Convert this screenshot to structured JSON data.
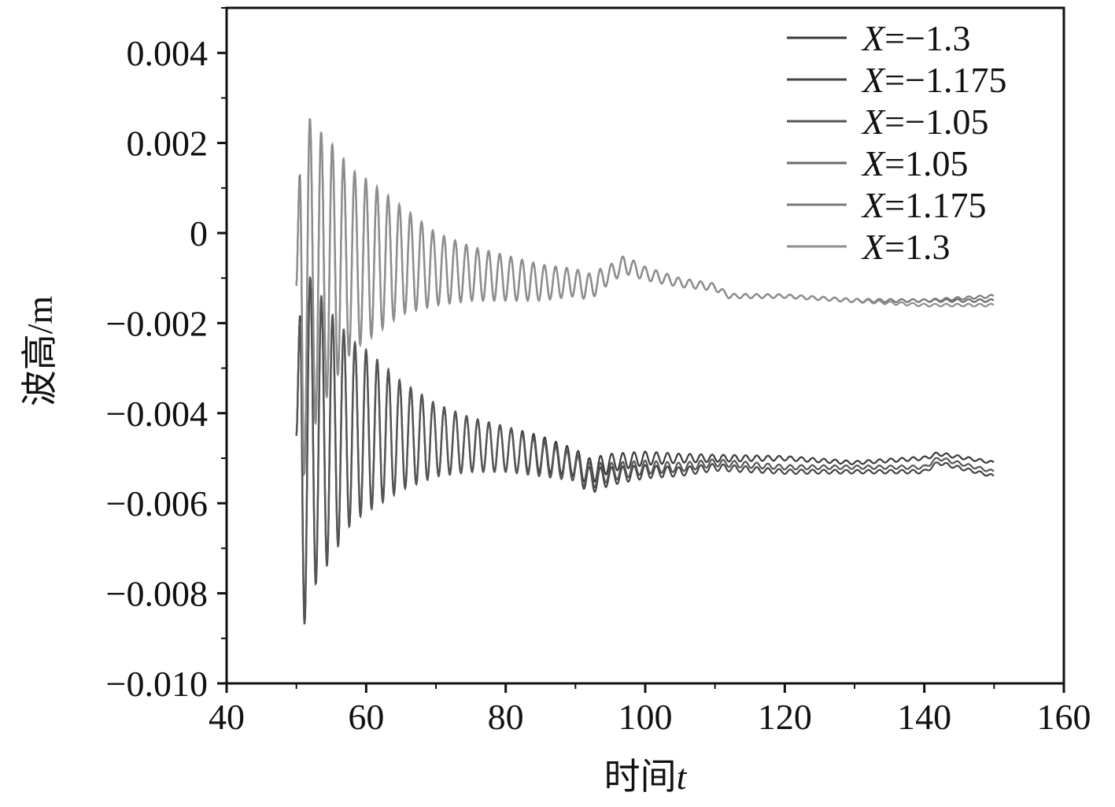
{
  "chart_data": {
    "type": "line",
    "title": "",
    "xlabel": "时间",
    "xlabel_var": "t",
    "ylabel": "波高/m",
    "xlim": [
      40,
      160
    ],
    "ylim": [
      -0.01,
      0.005
    ],
    "x_ticks": [
      40,
      60,
      80,
      100,
      120,
      140,
      160
    ],
    "y_ticks": [
      0.004,
      0.002,
      0,
      -0.002,
      -0.004,
      -0.006,
      -0.008,
      -0.01
    ],
    "y_tick_labels": [
      "0.004",
      "0.002",
      "0",
      "−0.002",
      "−0.004",
      "−0.006",
      "−0.008",
      "−0.010"
    ],
    "grid": false,
    "legend_position": "top-right",
    "legend": [
      {
        "var": "X",
        "value": "=−1.3",
        "color": "#3a3a3a"
      },
      {
        "var": "X",
        "value": "=−1.175",
        "color": "#444444"
      },
      {
        "var": "X",
        "value": "=−1.05",
        "color": "#555555"
      },
      {
        "var": "X",
        "value": "=1.05",
        "color": "#6a6a6a"
      },
      {
        "var": "X",
        "value": "=1.175",
        "color": "#7a7a7a"
      },
      {
        "var": "X",
        "value": "=1.3",
        "color": "#8e8e8e"
      }
    ],
    "series": [
      {
        "name": "X=−1.3",
        "color": "#3a3a3a",
        "x": [
          50,
          50.8,
          52,
          55,
          58,
          60,
          65,
          70,
          75,
          80,
          85,
          90,
          92,
          95,
          100,
          105,
          110,
          120,
          130,
          140,
          142,
          150
        ],
        "amp": [
          0.0002,
          0.0045,
          0.0035,
          0.0027,
          0.002,
          0.0018,
          0.0012,
          0.0008,
          0.0006,
          0.0005,
          0.0004,
          0.0003,
          0.0003,
          0.0002,
          0.00015,
          0.0001,
          8e-05,
          5e-05,
          4e-05,
          4e-05,
          4e-05,
          3e-05
        ],
        "base": [
          -0.0045,
          -0.0045,
          -0.0045,
          -0.0045,
          -0.0044,
          -0.0044,
          -0.0045,
          -0.0046,
          -0.0047,
          -0.0048,
          -0.0049,
          -0.0051,
          -0.0053,
          -0.0051,
          -0.005,
          -0.005,
          -0.005,
          -0.005,
          -0.0051,
          -0.005,
          -0.0049,
          -0.0051
        ]
      },
      {
        "name": "X=−1.175",
        "color": "#444444",
        "x": [
          50,
          50.8,
          52,
          55,
          58,
          60,
          65,
          70,
          75,
          80,
          85,
          90,
          92,
          95,
          100,
          105,
          110,
          120,
          130,
          140,
          142,
          150
        ],
        "amp": [
          0.0002,
          0.0045,
          0.0035,
          0.0027,
          0.002,
          0.0018,
          0.0012,
          0.0008,
          0.0006,
          0.0005,
          0.0004,
          0.0003,
          0.0003,
          0.0002,
          0.00015,
          0.0001,
          8e-05,
          5e-05,
          4e-05,
          4e-05,
          4e-05,
          3e-05
        ],
        "base": [
          -0.0045,
          -0.0045,
          -0.0045,
          -0.0045,
          -0.0044,
          -0.0044,
          -0.0045,
          -0.0046,
          -0.0047,
          -0.0048,
          -0.005,
          -0.0052,
          -0.0055,
          -0.0054,
          -0.0053,
          -0.0053,
          -0.0052,
          -0.0053,
          -0.0053,
          -0.0053,
          -0.0051,
          -0.0054
        ]
      },
      {
        "name": "X=−1.05",
        "color": "#555555",
        "x": [
          50,
          50.8,
          52,
          55,
          58,
          60,
          65,
          70,
          75,
          80,
          85,
          90,
          92,
          95,
          100,
          105,
          110,
          120,
          130,
          140,
          142,
          150
        ],
        "amp": [
          0.0002,
          0.0045,
          0.0035,
          0.0027,
          0.002,
          0.0018,
          0.0012,
          0.0008,
          0.0006,
          0.0005,
          0.0004,
          0.0003,
          0.0003,
          0.0002,
          0.00015,
          0.0001,
          8e-05,
          5e-05,
          4e-05,
          4e-05,
          4e-05,
          3e-05
        ],
        "base": [
          -0.0045,
          -0.0045,
          -0.0045,
          -0.0045,
          -0.0044,
          -0.0044,
          -0.0045,
          -0.0046,
          -0.0047,
          -0.0048,
          -0.005,
          -0.0052,
          -0.0054,
          -0.0053,
          -0.0052,
          -0.0052,
          -0.0051,
          -0.0052,
          -0.0052,
          -0.0052,
          -0.005,
          -0.0053
        ]
      },
      {
        "name": "X=1.05",
        "color": "#6a6a6a",
        "x": [
          50,
          50.8,
          52,
          55,
          58,
          60,
          65,
          70,
          75,
          80,
          85,
          90,
          92,
          95,
          97,
          100,
          105,
          110,
          112,
          120,
          130,
          140,
          150
        ],
        "amp": [
          0.0002,
          0.0045,
          0.0035,
          0.0027,
          0.002,
          0.0018,
          0.0012,
          0.0008,
          0.0006,
          0.0005,
          0.0004,
          0.0003,
          0.0003,
          0.0002,
          0.0002,
          0.00015,
          0.0001,
          8e-05,
          5e-05,
          4e-05,
          4e-05,
          3e-05,
          3e-05
        ],
        "base": [
          -0.0012,
          -0.0012,
          -0.001,
          -0.0007,
          -0.0006,
          -0.0006,
          -0.0006,
          -0.0008,
          -0.0009,
          -0.001,
          -0.0011,
          -0.0011,
          -0.0012,
          -0.0009,
          -0.0007,
          -0.0009,
          -0.0011,
          -0.0012,
          -0.0014,
          -0.0014,
          -0.0015,
          -0.0015,
          -0.0015
        ]
      },
      {
        "name": "X=1.175",
        "color": "#7a7a7a",
        "x": [
          50,
          50.8,
          52,
          55,
          58,
          60,
          65,
          70,
          75,
          80,
          85,
          90,
          92,
          95,
          97,
          100,
          105,
          110,
          112,
          120,
          130,
          140,
          150
        ],
        "amp": [
          0.0002,
          0.0045,
          0.0035,
          0.0027,
          0.002,
          0.0018,
          0.0012,
          0.0008,
          0.0006,
          0.0005,
          0.0004,
          0.0003,
          0.0003,
          0.0002,
          0.0002,
          0.00015,
          0.0001,
          8e-05,
          5e-05,
          4e-05,
          4e-05,
          3e-05,
          3e-05
        ],
        "base": [
          -0.0012,
          -0.0012,
          -0.001,
          -0.0007,
          -0.0006,
          -0.0006,
          -0.0006,
          -0.0008,
          -0.0009,
          -0.001,
          -0.0011,
          -0.0011,
          -0.0012,
          -0.0009,
          -0.0007,
          -0.0009,
          -0.0011,
          -0.0012,
          -0.0014,
          -0.0014,
          -0.0015,
          -0.0015,
          -0.0014
        ]
      },
      {
        "name": "X=1.3",
        "color": "#8e8e8e",
        "x": [
          50,
          50.8,
          52,
          55,
          58,
          60,
          65,
          70,
          75,
          80,
          85,
          90,
          92,
          95,
          97,
          100,
          105,
          110,
          112,
          120,
          130,
          140,
          150
        ],
        "amp": [
          0.0002,
          0.0045,
          0.0035,
          0.0027,
          0.002,
          0.0018,
          0.0012,
          0.0008,
          0.0006,
          0.0005,
          0.0004,
          0.0003,
          0.0003,
          0.0002,
          0.0002,
          0.00015,
          0.0001,
          8e-05,
          5e-05,
          4e-05,
          4e-05,
          3e-05,
          3e-05
        ],
        "base": [
          -0.0012,
          -0.0012,
          -0.001,
          -0.0007,
          -0.0006,
          -0.0006,
          -0.0006,
          -0.0008,
          -0.0009,
          -0.001,
          -0.0011,
          -0.0011,
          -0.0012,
          -0.0009,
          -0.0007,
          -0.0009,
          -0.0011,
          -0.0012,
          -0.0014,
          -0.0014,
          -0.0015,
          -0.0016,
          -0.0016
        ]
      }
    ],
    "oscillation_period": 1.6,
    "x_start": 50,
    "x_end": 150
  }
}
